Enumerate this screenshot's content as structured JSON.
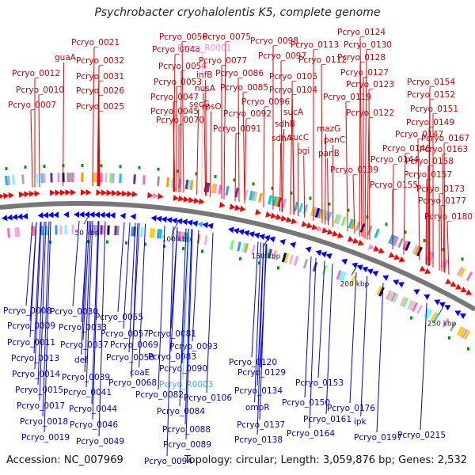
{
  "title": "Psychrobacter cryohalolentis K5, complete genome",
  "footer": {
    "accession": "Accession: NC_007969",
    "summary": "Topology: circular; Length: 3,059,876 bp; Genes: 2,532"
  },
  "colors": {
    "forward_gene": "#ff0000",
    "reverse_gene": "#0000ff",
    "rna_forward": "#ff88cc",
    "rna_reverse": "#33bbdd",
    "backbone": "#777777",
    "marker": "#009900"
  },
  "top_labels": [
    {
      "text": "Pcryo_0021",
      "color": "red"
    },
    {
      "text": "guaA",
      "color": "red"
    },
    {
      "text": "Pcryo_0012",
      "color": "red"
    },
    {
      "text": "Pcryo_0010",
      "color": "red"
    },
    {
      "text": "Pcryo_0007",
      "color": "red"
    },
    {
      "text": "Pcryo_0032",
      "color": "red"
    },
    {
      "text": "Pcryo_0031",
      "color": "red"
    },
    {
      "text": "Pcryo_0026",
      "color": "red"
    },
    {
      "text": "Pcryo_0025",
      "color": "red"
    },
    {
      "text": "Pcryo_0056",
      "color": "red"
    },
    {
      "text": "Pcryo_0048",
      "color": "red"
    },
    {
      "text": "Pcryo_0054",
      "color": "red"
    },
    {
      "text": "Pcryo_0053",
      "color": "red"
    },
    {
      "text": "Pcryo_0047",
      "color": "red"
    },
    {
      "text": "Pcryo_0045",
      "color": "red"
    },
    {
      "text": "Pcryo_0075",
      "color": "red"
    },
    {
      "text": "Pcryo_R0001",
      "color": "pink"
    },
    {
      "text": "Pcryo_0077",
      "color": "red"
    },
    {
      "text": "infB",
      "color": "red"
    },
    {
      "text": "nusA",
      "color": "red"
    },
    {
      "text": "secG",
      "color": "red"
    },
    {
      "text": "rpsO",
      "color": "red"
    },
    {
      "text": "Pcryo_0070",
      "color": "red"
    },
    {
      "text": "Pcryo_0086",
      "color": "red"
    },
    {
      "text": "Pcryo_0085",
      "color": "red"
    },
    {
      "text": "Pcryo_0092",
      "color": "red"
    },
    {
      "text": "Pcryo_0091",
      "color": "red"
    },
    {
      "text": "Pcryo_0098",
      "color": "red"
    },
    {
      "text": "Pcryo_0097",
      "color": "red"
    },
    {
      "text": "Pcryo_0105",
      "color": "red"
    },
    {
      "text": "Pcryo_0104",
      "color": "red"
    },
    {
      "text": "Pcryo_0096",
      "color": "red"
    },
    {
      "text": "Pcryo_0113",
      "color": "red"
    },
    {
      "text": "Pcryo_0112",
      "color": "red"
    },
    {
      "text": "sucA",
      "color": "red"
    },
    {
      "text": "sdhB",
      "color": "red"
    },
    {
      "text": "sdhA",
      "color": "red"
    },
    {
      "text": "sucC",
      "color": "red"
    },
    {
      "text": "pgi",
      "color": "red"
    },
    {
      "text": "Pcryo_0124",
      "color": "red"
    },
    {
      "text": "Pcryo_0130",
      "color": "red"
    },
    {
      "text": "Pcryo_0128",
      "color": "red"
    },
    {
      "text": "Pcryo_0127",
      "color": "red"
    },
    {
      "text": "Pcryo_0123",
      "color": "red"
    },
    {
      "text": "Pcryo_0119",
      "color": "red"
    },
    {
      "text": "Pcryo_0122",
      "color": "red"
    },
    {
      "text": "mazG",
      "color": "red"
    },
    {
      "text": "panC",
      "color": "red"
    },
    {
      "text": "panB",
      "color": "red"
    },
    {
      "text": "Pcryo_0139",
      "color": "red"
    },
    {
      "text": "Pcryo_0154",
      "color": "red"
    },
    {
      "text": "Pcryo_0152",
      "color": "red"
    },
    {
      "text": "Pcryo_0151",
      "color": "red"
    },
    {
      "text": "Pcryo_0149",
      "color": "red"
    },
    {
      "text": "Pcryo_0147",
      "color": "red"
    },
    {
      "text": "Pcryo_0146",
      "color": "red"
    },
    {
      "text": "Pcryo_0144",
      "color": "red"
    },
    {
      "text": "Pcryo_0155",
      "color": "red"
    },
    {
      "text": "Pcryo_0167",
      "color": "red"
    },
    {
      "text": "Pcryo_0163",
      "color": "red"
    },
    {
      "text": "Pcryo_0158",
      "color": "red"
    },
    {
      "text": "Pcryo_0157",
      "color": "red"
    },
    {
      "text": "Pcryo_0173",
      "color": "red"
    },
    {
      "text": "Pcryo_0177",
      "color": "red"
    },
    {
      "text": "Pcryo_0180",
      "color": "red"
    }
  ],
  "bottom_labels": [
    {
      "text": "Pcryo_0008",
      "color": "blue"
    },
    {
      "text": "Pcryo_0009",
      "color": "blue"
    },
    {
      "text": "Pcryo_0011",
      "color": "blue"
    },
    {
      "text": "Pcryo_0013",
      "color": "blue"
    },
    {
      "text": "Pcryo_0014",
      "color": "blue"
    },
    {
      "text": "Pcryo_0015",
      "color": "blue"
    },
    {
      "text": "Pcryo_0017",
      "color": "blue"
    },
    {
      "text": "Pcryo_0018",
      "color": "blue"
    },
    {
      "text": "Pcryo_0019",
      "color": "blue"
    },
    {
      "text": "Pcryo_0030",
      "color": "blue"
    },
    {
      "text": "Pcryo_0033",
      "color": "blue"
    },
    {
      "text": "Pcryo_0037",
      "color": "blue"
    },
    {
      "text": "def",
      "color": "blue"
    },
    {
      "text": "Pcryo_0039",
      "color": "blue"
    },
    {
      "text": "Pcryo_0041",
      "color": "blue"
    },
    {
      "text": "Pcryo_0044",
      "color": "blue"
    },
    {
      "text": "Pcryo_0046",
      "color": "blue"
    },
    {
      "text": "Pcryo_0049",
      "color": "blue"
    },
    {
      "text": "Pcryo_0055",
      "color": "blue"
    },
    {
      "text": "Pcryo_0057",
      "color": "blue"
    },
    {
      "text": "Pcryo_0069",
      "color": "blue"
    },
    {
      "text": "Pcryo_0058",
      "color": "blue"
    },
    {
      "text": "coaE",
      "color": "blue"
    },
    {
      "text": "Pcryo_0068",
      "color": "blue"
    },
    {
      "text": "Pcryo_0081",
      "color": "blue"
    },
    {
      "text": "Pcryo_0083",
      "color": "blue"
    },
    {
      "text": "Pcryo_0090",
      "color": "blue"
    },
    {
      "text": "Pcryo_0093",
      "color": "blue"
    },
    {
      "text": "Pcryo_R0003",
      "color": "cyan"
    },
    {
      "text": "Pcryo_0082",
      "color": "blue"
    },
    {
      "text": "Pcryo_0084",
      "color": "blue"
    },
    {
      "text": "Pcryo_0088",
      "color": "blue"
    },
    {
      "text": "Pcryo_0089",
      "color": "blue"
    },
    {
      "text": "Pcryo_0094",
      "color": "blue"
    },
    {
      "text": "Pcryo_0106",
      "color": "blue"
    },
    {
      "text": "Pcryo_0120",
      "color": "blue"
    },
    {
      "text": "Pcryo_0129",
      "color": "blue"
    },
    {
      "text": "Pcryo_0134",
      "color": "blue"
    },
    {
      "text": "ompR",
      "color": "blue"
    },
    {
      "text": "Pcryo_0137",
      "color": "blue"
    },
    {
      "text": "Pcryo_0138",
      "color": "blue"
    },
    {
      "text": "Pcryo_0153",
      "color": "blue"
    },
    {
      "text": "Pcryo_0150",
      "color": "blue"
    },
    {
      "text": "Pcryo_0161",
      "color": "blue"
    },
    {
      "text": "Pcryo_0164",
      "color": "blue"
    },
    {
      "text": "Pcryo_0176",
      "color": "blue"
    },
    {
      "text": "ipk",
      "color": "blue"
    },
    {
      "text": "Pcryo_0197",
      "color": "blue"
    },
    {
      "text": "Pcryo_0215",
      "color": "blue"
    }
  ],
  "scale_ticks": [
    "50 kbp",
    "100 kbp",
    "150 kbp",
    "200 kbp",
    "250 kbp"
  ]
}
